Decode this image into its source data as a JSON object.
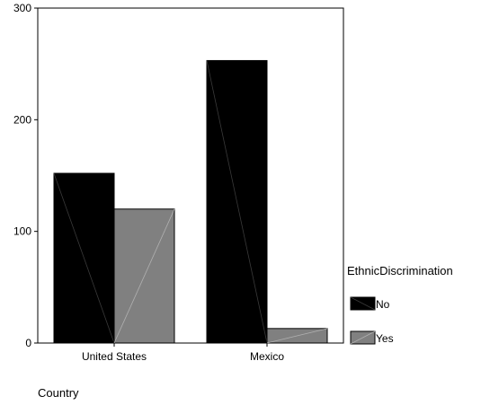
{
  "chart_data": {
    "type": "bar",
    "categories": [
      "United States",
      "Mexico"
    ],
    "series": [
      {
        "name": "No",
        "values": [
          152,
          253
        ],
        "color": "#000000"
      },
      {
        "name": "Yes",
        "values": [
          120,
          13
        ],
        "color": "#808080"
      }
    ],
    "ylim": [
      0,
      300
    ],
    "yticks": [
      0,
      100,
      200,
      300
    ],
    "xlabel": "Country",
    "ylabel": "",
    "legend_title": "EthnicDiscrimination",
    "legend_position": "right",
    "grid": false
  }
}
